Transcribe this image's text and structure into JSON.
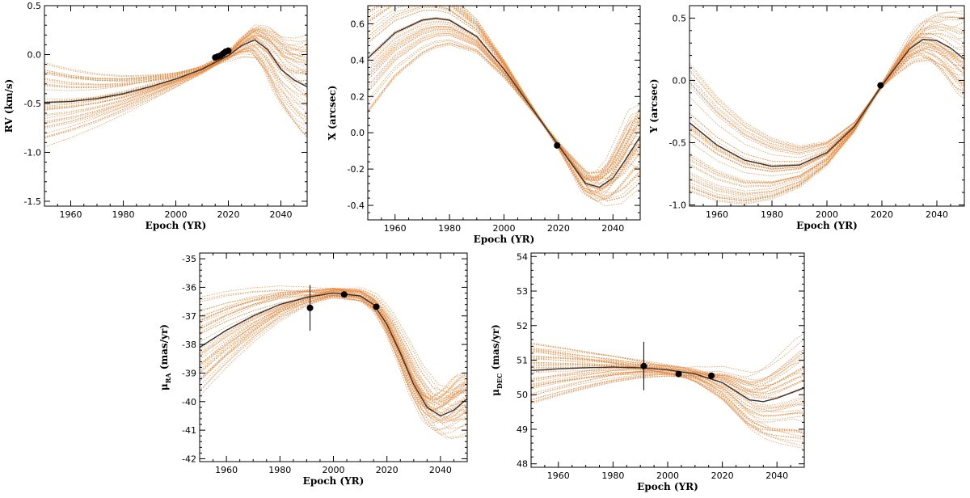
{
  "colors": {
    "sample": "#e8853a",
    "best_fit": "#333333",
    "observations": "#000000"
  },
  "chart_data": [
    {
      "type": "line",
      "name": "rv",
      "xlabel": "Epoch (YR)",
      "ylabel": "RV (km/s)",
      "xlim": [
        1950,
        2050
      ],
      "ylim": [
        -1.55,
        0.5
      ],
      "xticks": [
        1960,
        1980,
        2000,
        2020,
        2040
      ],
      "xtick_labels": [
        "1960",
        "1980",
        "2000",
        "2020",
        "2040"
      ],
      "yticks": [
        -1.5,
        -1.0,
        -0.5,
        0.0,
        0.5
      ],
      "ytick_labels": [
        "-1.5",
        "-1.0",
        "-0.5",
        "0.0",
        "0.5"
      ],
      "best_fit": {
        "x": [
          1950,
          1960,
          1970,
          1980,
          1990,
          2000,
          2010,
          2020,
          2025,
          2030,
          2035,
          2040,
          2045,
          2050
        ],
        "y": [
          -0.49,
          -0.48,
          -0.45,
          -0.4,
          -0.33,
          -0.25,
          -0.15,
          -0.01,
          0.09,
          0.15,
          0.05,
          -0.15,
          -0.26,
          -0.33
        ]
      },
      "observations": [
        {
          "x": 2015,
          "y": -0.03
        },
        {
          "x": 2016,
          "y": -0.02
        },
        {
          "x": 2017,
          "y": -0.01
        },
        {
          "x": 2018,
          "y": 0.01
        },
        {
          "x": 2019,
          "y": 0.03
        },
        {
          "x": 2020,
          "y": 0.04
        }
      ],
      "samples": {
        "spread_start": 0.45,
        "spread_mid": 0.08,
        "spread_end": 0.55,
        "anchor": 2016,
        "count": 45
      }
    },
    {
      "type": "line",
      "name": "x",
      "xlabel": "Epoch (YR)",
      "ylabel": "X (arcsec)",
      "xlim": [
        1950,
        2050
      ],
      "ylim": [
        -0.48,
        0.7
      ],
      "xticks": [
        1960,
        1980,
        2000,
        2020,
        2040
      ],
      "xtick_labels": [
        "1960",
        "1980",
        "2000",
        "2020",
        "2040"
      ],
      "yticks": [
        -0.4,
        -0.2,
        0.0,
        0.2,
        0.4,
        0.6
      ],
      "ytick_labels": [
        "-0.4",
        "-0.2",
        "0.0",
        "0.2",
        "0.4",
        "0.6"
      ],
      "best_fit": {
        "x": [
          1950,
          1960,
          1970,
          1975,
          1980,
          1990,
          2000,
          2010,
          2020,
          2030,
          2035,
          2040,
          2045,
          2050
        ],
        "y": [
          0.41,
          0.55,
          0.62,
          0.63,
          0.62,
          0.53,
          0.35,
          0.14,
          -0.07,
          -0.28,
          -0.3,
          -0.25,
          -0.14,
          -0.02
        ]
      },
      "observations": [
        {
          "x": 2019.5,
          "y": -0.07
        }
      ],
      "samples": {
        "spread_start": 0.32,
        "spread_mid": 0.02,
        "spread_end": 0.2,
        "anchor": 2015,
        "count": 45
      }
    },
    {
      "type": "line",
      "name": "y",
      "xlabel": "Epoch (YR)",
      "ylabel": "Y (arcsec)",
      "xlim": [
        1950,
        2050
      ],
      "ylim": [
        -1.01,
        0.6
      ],
      "xticks": [
        1960,
        1980,
        2000,
        2020,
        2040
      ],
      "xtick_labels": [
        "1960",
        "1980",
        "2000",
        "2020",
        "2040"
      ],
      "yticks": [
        -1.0,
        -0.5,
        0.0,
        0.5
      ],
      "ytick_labels": [
        "-1.0",
        "-0.5",
        "0.0",
        "0.5"
      ],
      "best_fit": {
        "x": [
          1950,
          1960,
          1970,
          1980,
          1990,
          2000,
          2010,
          2020,
          2030,
          2035,
          2040,
          2045,
          2050
        ],
        "y": [
          -0.34,
          -0.52,
          -0.64,
          -0.69,
          -0.68,
          -0.58,
          -0.37,
          -0.04,
          0.25,
          0.33,
          0.32,
          0.26,
          0.17
        ]
      },
      "observations": [
        {
          "x": 2019.5,
          "y": -0.04
        }
      ],
      "samples": {
        "spread_start": 0.55,
        "spread_mid": 0.03,
        "spread_end": 0.35,
        "anchor": 2018,
        "count": 45
      }
    },
    {
      "type": "line",
      "name": "pmra",
      "xlabel": "Epoch (YR)",
      "ylabel": "μRA (mas/yr)",
      "ylabel_main": "μ",
      "ylabel_sub": "RA",
      "ylabel_unit": "(mas/yr)",
      "xlim": [
        1950,
        2050
      ],
      "ylim": [
        -42.1,
        -34.8
      ],
      "xticks": [
        1960,
        1980,
        2000,
        2020,
        2040
      ],
      "xtick_labels": [
        "1960",
        "1980",
        "2000",
        "2020",
        "2040"
      ],
      "yticks": [
        -42,
        -41,
        -40,
        -39,
        -38,
        -37,
        -36,
        -35
      ],
      "ytick_labels": [
        "-42",
        "-41",
        "-40",
        "-39",
        "-38",
        "-37",
        "-36",
        "-35"
      ],
      "best_fit": {
        "x": [
          1950,
          1960,
          1970,
          1980,
          1990,
          2000,
          2010,
          2015,
          2020,
          2025,
          2030,
          2035,
          2040,
          2045,
          2050
        ],
        "y": [
          -38.1,
          -37.5,
          -37.0,
          -36.6,
          -36.35,
          -36.2,
          -36.3,
          -36.6,
          -37.3,
          -38.3,
          -39.4,
          -40.2,
          -40.5,
          -40.3,
          -39.9
        ]
      },
      "observations": [
        {
          "x": 1991.25,
          "y": -36.72,
          "err": 0.8
        },
        {
          "x": 2004,
          "y": -36.25
        },
        {
          "x": 2016,
          "y": -36.68
        }
      ],
      "samples": {
        "spread_start": 1.7,
        "spread_mid": 0.35,
        "spread_end": 1.0,
        "anchor": 2000,
        "count": 45
      }
    },
    {
      "type": "line",
      "name": "pmdec",
      "xlabel": "Epoch (YR)",
      "ylabel": "μDEC (mas/yr)",
      "ylabel_main": "μ",
      "ylabel_sub": "DEC",
      "ylabel_unit": "(mas/yr)",
      "xlim": [
        1950,
        2050
      ],
      "ylim": [
        47.9,
        54.1
      ],
      "xticks": [
        1960,
        1980,
        2000,
        2020,
        2040
      ],
      "xtick_labels": [
        "1960",
        "1980",
        "2000",
        "2020",
        "2040"
      ],
      "yticks": [
        48,
        49,
        50,
        51,
        52,
        53,
        54
      ],
      "ytick_labels": [
        "48",
        "49",
        "50",
        "51",
        "52",
        "53",
        "54"
      ],
      "best_fit": {
        "x": [
          1950,
          1960,
          1970,
          1980,
          1990,
          2000,
          2010,
          2020,
          2025,
          2030,
          2035,
          2040,
          2045,
          2050
        ],
        "y": [
          50.7,
          50.75,
          50.78,
          50.8,
          50.78,
          50.72,
          50.6,
          50.35,
          50.1,
          49.85,
          49.8,
          49.9,
          50.05,
          50.2
        ]
      },
      "observations": [
        {
          "x": 1991.25,
          "y": 50.83,
          "err": 0.7
        },
        {
          "x": 2004,
          "y": 50.6
        },
        {
          "x": 2016,
          "y": 50.55
        }
      ],
      "samples": {
        "spread_start": 0.9,
        "spread_mid": 0.3,
        "spread_end": 1.6,
        "anchor": 2005,
        "count": 45
      }
    }
  ]
}
